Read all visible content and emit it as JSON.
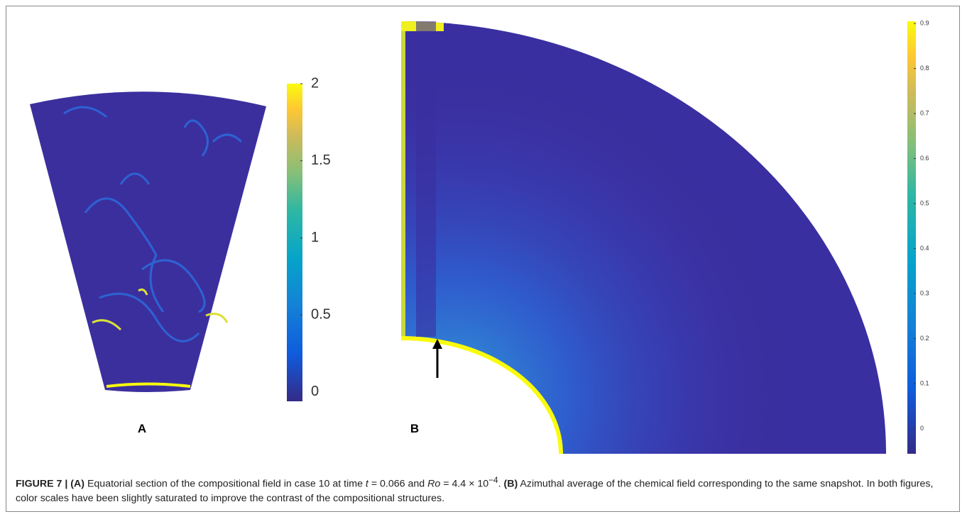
{
  "panel_a": {
    "label": "A",
    "colorbar": {
      "lim": [
        -0.06,
        2
      ],
      "ticks": [
        {
          "value": 2,
          "label": "2"
        },
        {
          "value": 1.5,
          "label": "1.5"
        },
        {
          "value": 1,
          "label": "1"
        },
        {
          "value": 0.5,
          "label": "0.5"
        },
        {
          "value": 0,
          "label": "0"
        }
      ]
    }
  },
  "panel_b": {
    "label": "B",
    "colorbar": {
      "lim": [
        -0.056,
        0.905
      ],
      "ticks": [
        0.9,
        0.8,
        0.7,
        0.6,
        0.5,
        0.4,
        0.3,
        0.2,
        0.1,
        0
      ]
    }
  },
  "caption": {
    "figure_label": "FIGURE 7 |",
    "a_marker": "(A)",
    "a_text": "Equatorial section of the compositional field in case 10 at time",
    "t_var": "t",
    "t_text": "= 0.066 and",
    "ro_var": "Ro",
    "ro_text": "= 4.4 × 10",
    "ro_exp": "−4",
    "a_end": ".",
    "b_marker": "(B)",
    "b_text": "Azimuthal average of the chemical field corresponding to the same snapshot. In both figures, color scales have been slightly saturated to improve the contrast of the compositional structures."
  }
}
